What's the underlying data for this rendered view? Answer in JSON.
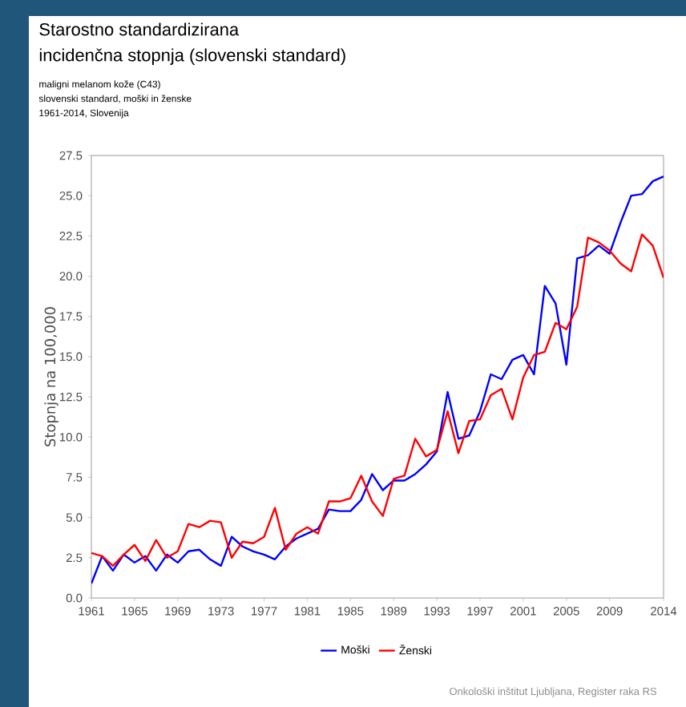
{
  "chart_data": {
    "type": "line",
    "title": "Starostno standardizirana",
    "subtitle": "incidenčna stopnja (slovenski standard)",
    "annotations": [
      "maligni melanom kože (C43)",
      "slovenski standard, moški in ženske",
      "1961-2014, Slovenija",
      "Onkološki inštitut Ljubljana, Register raka RS"
    ],
    "ylabel": "Stopnja na 100,000",
    "x": [
      1961,
      1962,
      1963,
      1964,
      1965,
      1966,
      1967,
      1968,
      1969,
      1970,
      1971,
      1972,
      1973,
      1974,
      1975,
      1976,
      1977,
      1978,
      1979,
      1980,
      1981,
      1982,
      1983,
      1984,
      1985,
      1986,
      1987,
      1988,
      1989,
      1990,
      1991,
      1992,
      1993,
      1994,
      1995,
      1996,
      1997,
      1998,
      1999,
      2000,
      2001,
      2002,
      2003,
      2004,
      2005,
      2006,
      2007,
      2008,
      2009,
      2010,
      2011,
      2012,
      2013,
      2014
    ],
    "series": [
      {
        "name": "Moški",
        "color": "#0000ff",
        "values": [
          0.9,
          2.6,
          1.7,
          2.7,
          2.2,
          2.6,
          1.7,
          2.7,
          2.2,
          2.9,
          3.0,
          2.4,
          2.0,
          3.8,
          3.2,
          2.9,
          2.7,
          2.4,
          3.2,
          3.7,
          4.0,
          4.3,
          5.5,
          5.4,
          5.4,
          6.1,
          7.7,
          6.7,
          7.3,
          7.3,
          7.7,
          8.3,
          9.1,
          12.8,
          9.9,
          10.1,
          11.6,
          13.9,
          13.6,
          14.8,
          15.1,
          13.9,
          19.4,
          18.3,
          14.5,
          21.1,
          21.3,
          21.9,
          21.4,
          23.3,
          25.0,
          25.1,
          25.9,
          26.2
        ]
      },
      {
        "name": "Ženski",
        "color": "#ff0000",
        "values": [
          2.8,
          2.6,
          2.0,
          2.7,
          3.3,
          2.3,
          3.6,
          2.5,
          2.9,
          4.6,
          4.4,
          4.8,
          4.7,
          2.5,
          3.5,
          3.4,
          3.8,
          5.6,
          3.0,
          4.0,
          4.4,
          4.0,
          6.0,
          6.0,
          6.2,
          7.6,
          6.0,
          5.1,
          7.4,
          7.6,
          9.9,
          8.8,
          9.2,
          11.6,
          9.0,
          11.0,
          11.1,
          12.6,
          13.0,
          11.1,
          13.7,
          15.1,
          15.3,
          17.1,
          16.7,
          18.1,
          22.4,
          22.1,
          21.6,
          20.8,
          20.3,
          22.6,
          21.9,
          19.9
        ]
      }
    ],
    "xlim": [
      1961,
      2014
    ],
    "xticks": [
      1961,
      1965,
      1969,
      1973,
      1977,
      1981,
      1985,
      1989,
      1993,
      1997,
      2001,
      2005,
      2009,
      2014
    ],
    "ylim": [
      0,
      27.5
    ],
    "yticks": [
      {
        "value": 0,
        "label": "0.0"
      },
      2.5,
      {
        "value": 5,
        "label": "5.0"
      },
      7.5,
      {
        "value": 10,
        "label": "10.0"
      },
      12.5,
      {
        "value": 15,
        "label": "15.0"
      },
      17.5,
      {
        "value": 20,
        "label": "20.0"
      },
      22.5,
      {
        "value": 25,
        "label": "25.0"
      },
      27.5
    ],
    "grid": false,
    "legend": "bottom",
    "marker": "none",
    "line_style": "solid"
  }
}
